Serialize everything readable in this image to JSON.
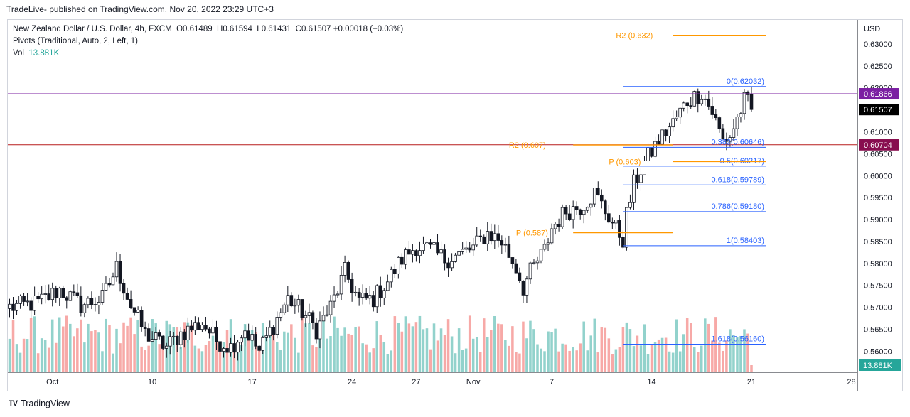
{
  "header": {
    "published": "TradeLive- published on TradingView.com, Nov 20, 2022 23:29 UTC+3"
  },
  "legend": {
    "symbol": "New Zealand Dollar / U.S. Dollar, 4h, FXCM",
    "open_label": "O",
    "open": "0.61489",
    "high_label": "H",
    "high": "0.61594",
    "low_label": "L",
    "low": "0.61431",
    "close_label": "C",
    "close": "0.61507",
    "change": "+0.00018 (+0.03%)",
    "indicator": "Pivots (Traditional, Auto, 2, Left, 1)",
    "vol_label": "Vol",
    "vol_value": "13.881K"
  },
  "footer": {
    "brand": "TradingView",
    "logo": "TV"
  },
  "chart_data": {
    "type": "candlestick",
    "currency": "USD",
    "y_ticks": [
      0.63,
      0.625,
      0.62,
      0.615,
      0.61,
      0.605,
      0.6,
      0.595,
      0.59,
      0.585,
      0.58,
      0.575,
      0.57,
      0.565,
      0.56
    ],
    "y_tick_labels": [
      "0.63000",
      "0.62500",
      "0.62000",
      "0.61500",
      "0.61000",
      "0.60500",
      "0.60000",
      "0.59500",
      "0.59000",
      "0.58500",
      "0.58000",
      "0.57500",
      "0.57000",
      "0.56500",
      "0.56000"
    ],
    "ylim": [
      0.5552,
      0.6355
    ],
    "x_labels": [
      {
        "label": "Oct",
        "bar": 12
      },
      {
        "label": "10",
        "bar": 40
      },
      {
        "label": "17",
        "bar": 68
      },
      {
        "label": "24",
        "bar": 96
      },
      {
        "label": "27",
        "bar": 114
      },
      {
        "label": "Nov",
        "bar": 130
      },
      {
        "label": "7",
        "bar": 152
      },
      {
        "label": "14",
        "bar": 180
      },
      {
        "label": "21",
        "bar": 208
      },
      {
        "label": "28",
        "bar": 236
      }
    ],
    "bar_count_visible": 238,
    "anchors": [
      [
        0,
        0.57
      ],
      [
        8,
        0.571
      ],
      [
        14,
        0.574
      ],
      [
        20,
        0.5705
      ],
      [
        26,
        0.572
      ],
      [
        30,
        0.579
      ],
      [
        34,
        0.5705
      ],
      [
        38,
        0.564
      ],
      [
        44,
        0.561
      ],
      [
        48,
        0.564
      ],
      [
        54,
        0.5665
      ],
      [
        58,
        0.5625
      ],
      [
        62,
        0.561
      ],
      [
        66,
        0.565
      ],
      [
        70,
        0.56
      ],
      [
        74,
        0.566
      ],
      [
        78,
        0.572
      ],
      [
        82,
        0.569
      ],
      [
        86,
        0.565
      ],
      [
        90,
        0.57
      ],
      [
        94,
        0.578
      ],
      [
        98,
        0.5715
      ],
      [
        102,
        0.572
      ],
      [
        106,
        0.576
      ],
      [
        110,
        0.581
      ],
      [
        114,
        0.584
      ],
      [
        118,
        0.583
      ],
      [
        122,
        0.581
      ],
      [
        126,
        0.582
      ],
      [
        130,
        0.5835
      ],
      [
        134,
        0.587
      ],
      [
        138,
        0.585
      ],
      [
        142,
        0.579
      ],
      [
        144,
        0.5745
      ],
      [
        146,
        0.578
      ],
      [
        150,
        0.583
      ],
      [
        152,
        0.588
      ],
      [
        156,
        0.592
      ],
      [
        160,
        0.593
      ],
      [
        164,
        0.596
      ],
      [
        167,
        0.592
      ],
      [
        170,
        0.588
      ],
      [
        172,
        0.5855
      ],
      [
        173,
        0.591
      ],
      [
        175,
        0.598
      ],
      [
        178,
        0.603
      ],
      [
        182,
        0.608
      ],
      [
        186,
        0.612
      ],
      [
        190,
        0.617
      ],
      [
        194,
        0.619
      ],
      [
        197,
        0.6145
      ],
      [
        200,
        0.608
      ],
      [
        202,
        0.609
      ],
      [
        204,
        0.613
      ],
      [
        206,
        0.617
      ],
      [
        207,
        0.6165
      ],
      [
        208,
        0.6151
      ]
    ],
    "volume_label": "13.881K",
    "volume_max": 100,
    "last_price": 0.61507,
    "price_badges": [
      {
        "value": 0.61866,
        "text": "0.61866",
        "color": "#7b1fa2"
      },
      {
        "value": 0.61507,
        "text": "0.61507",
        "color": "#000000"
      },
      {
        "value": 0.60704,
        "text": "0.60704",
        "color": "#880e4f"
      }
    ],
    "vol_badge": {
      "text": "13.881K",
      "color": "#26a69a"
    },
    "horizontal_lines": [
      {
        "value": 0.61866,
        "color": "#7b1fa2"
      },
      {
        "value": 0.60704,
        "color": "#b71c1c"
      }
    ],
    "fibonacci": {
      "color": "#2962ff",
      "x_start_bar": 172,
      "x_end_bar": 212,
      "levels": [
        {
          "label": "0(0.62032)",
          "value": 0.62032
        },
        {
          "label": "0.382(0.60646)",
          "value": 0.60646
        },
        {
          "label": "0.5(0.60217)",
          "value": 0.60217
        },
        {
          "label": "0.618(0.59789)",
          "value": 0.59789
        },
        {
          "label": "0.786(0.59180)",
          "value": 0.5918
        },
        {
          "label": "1(0.58403)",
          "value": 0.58403
        },
        {
          "label": "1.618(0.56160)",
          "value": 0.5616
        }
      ]
    },
    "pivots": {
      "color": "#ff9800",
      "levels": [
        {
          "label": "R2 (0.632)",
          "value": 0.632,
          "x_start_bar": 186,
          "x_end_bar": 212,
          "label_bar": 170
        },
        {
          "label": "R2 (0.607)",
          "value": 0.607,
          "x_start_bar": 158,
          "x_end_bar": 186,
          "label_bar": 140
        },
        {
          "label": "P (0.603)",
          "value": 0.6032,
          "x_start_bar": 186,
          "x_end_bar": 212,
          "label_bar": 168
        },
        {
          "label": "P (0.587)",
          "value": 0.587,
          "x_start_bar": 158,
          "x_end_bar": 186,
          "label_bar": 142
        }
      ]
    }
  }
}
